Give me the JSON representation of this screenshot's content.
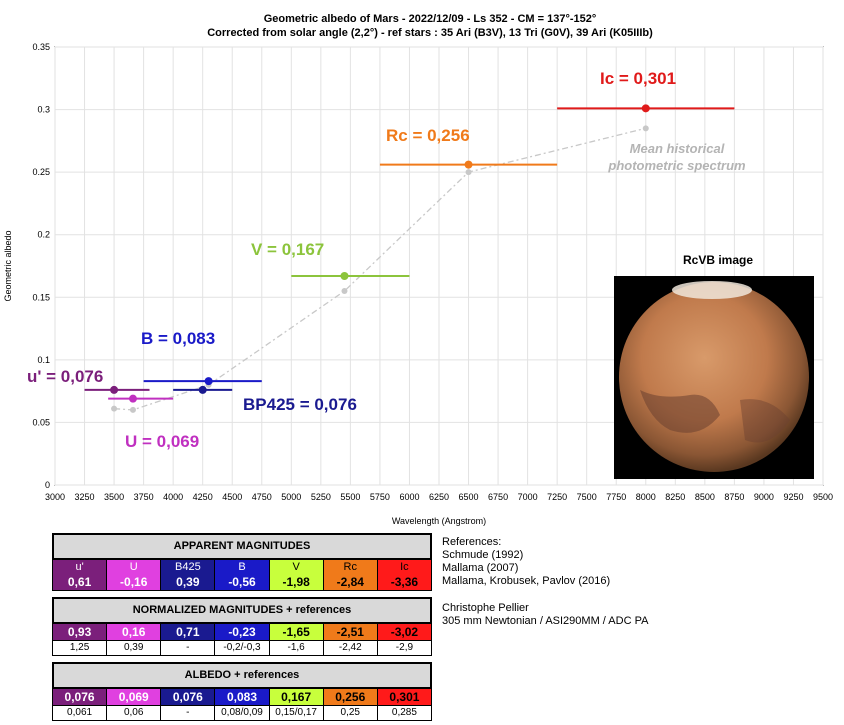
{
  "chart_data": {
    "type": "scatter",
    "title": "Geometric albedo of Mars - 2022/12/09 - Ls 352 - CM = 137°-152°",
    "subtitle": "Corrected from solar angle (2,2°) - ref stars : 35 Ari (B3V), 13 Tri (G0V), 39 Ari (K05IIIb)",
    "xlabel": "Wavelength (Angstrom)",
    "ylabel": "Geometric albedo",
    "xlim": [
      3000,
      9500
    ],
    "ylim": [
      0,
      0.35
    ],
    "x_ticks": [
      "3000",
      "3250",
      "3500",
      "3750",
      "4000",
      "4250",
      "4500",
      "4750",
      "5000",
      "5250",
      "5500",
      "5750",
      "6000",
      "6250",
      "6500",
      "6750",
      "7000",
      "7250",
      "7500",
      "7750",
      "8000",
      "8250",
      "8500",
      "8750",
      "9000",
      "9250",
      "9500"
    ],
    "y_ticks": [
      "0",
      "0.05",
      "0.1",
      "0.15",
      "0.2",
      "0.25",
      "0.3",
      "0.35"
    ],
    "grid": true,
    "series": [
      {
        "points": [
          {
            "filter": "u'",
            "x": 3500,
            "y": 0.076,
            "xmin": 3250,
            "xmax": 3800,
            "color": "#7b1f7b",
            "label": "u' = 0,076"
          },
          {
            "filter": "U",
            "x": 3660,
            "y": 0.069,
            "xmin": 3450,
            "xmax": 4000,
            "color": "#c030c0",
            "label": "U = 0,069"
          },
          {
            "filter": "BP425",
            "x": 4250,
            "y": 0.076,
            "xmin": 4000,
            "xmax": 4500,
            "color": "#1a1a90",
            "label": "BP425 = 0,076"
          },
          {
            "filter": "B",
            "x": 4300,
            "y": 0.083,
            "xmin": 3750,
            "xmax": 4750,
            "color": "#1a1ac8",
            "label": "B = 0,083"
          },
          {
            "filter": "V",
            "x": 5450,
            "y": 0.167,
            "xmin": 5000,
            "xmax": 6000,
            "color": "#8cc43c",
            "label": "V = 0,167"
          },
          {
            "filter": "Rc",
            "x": 6500,
            "y": 0.256,
            "xmin": 5750,
            "xmax": 7250,
            "color": "#f07a1a",
            "label": "Rc = 0,256"
          },
          {
            "filter": "Ic",
            "x": 8000,
            "y": 0.301,
            "xmin": 7250,
            "xmax": 8750,
            "color": "#e01a1a",
            "label": "Ic = 0,301"
          }
        ]
      },
      {
        "name_label": "Mean historical photometric spectrum",
        "color": "#c8c8c8",
        "points": [
          {
            "x": 3500,
            "y": 0.061
          },
          {
            "x": 3660,
            "y": 0.06
          },
          {
            "x": 4300,
            "y": 0.08
          },
          {
            "x": 5450,
            "y": 0.155
          },
          {
            "x": 6500,
            "y": 0.25
          },
          {
            "x": 8000,
            "y": 0.285
          }
        ]
      }
    ]
  },
  "image_panel": {
    "title": "RcVB image"
  },
  "legend_note": {
    "line1": "Mean historical",
    "line2": "photometric spectrum"
  },
  "table": {
    "filters": [
      "u'",
      "U",
      "B425",
      "B",
      "V",
      "Rc",
      "Ic"
    ],
    "colors": [
      "#7b1f7b",
      "#e040e0",
      "#1a1a90",
      "#1a1ac8",
      "#c8ff3c",
      "#f07a1a",
      "#ff1a1a"
    ],
    "text_colors": [
      "#ffffff",
      "#ffffff",
      "#ffffff",
      "#ffffff",
      "#000000",
      "#000000",
      "#000000"
    ],
    "apparent_title": "APPARENT MAGNITUDES",
    "apparent": [
      "0,61",
      "-0,16",
      "0,39",
      "-0,56",
      "-1,98",
      "-2,84",
      "-3,36"
    ],
    "normalized_title": "NORMALIZED MAGNITUDES + references",
    "normalized": [
      "0,93",
      "0,16",
      "0,71",
      "-0,23",
      "-1,65",
      "-2,51",
      "-3,02"
    ],
    "normalized_ref": [
      "1,25",
      "0,39",
      "-",
      "-0,2/-0,3",
      "-1,6",
      "-2,42",
      "-2,9"
    ],
    "albedo_title": "ALBEDO + references",
    "albedo": [
      "0,076",
      "0,069",
      "0,076",
      "0,083",
      "0,167",
      "0,256",
      "0,301"
    ],
    "albedo_ref": [
      "0,061",
      "0,06",
      "-",
      "0,08/0,09",
      "0,15/0,17",
      "0,25",
      "0,285"
    ]
  },
  "notes": {
    "references_title": "References:",
    "references": [
      "Schmude (1992)",
      "Mallama (2007)",
      "Mallama, Krobusek, Pavlov (2016)"
    ],
    "author": "Christophe Pellier",
    "equipment": "305 mm Newtonian / ASI290MM / ADC PA"
  }
}
